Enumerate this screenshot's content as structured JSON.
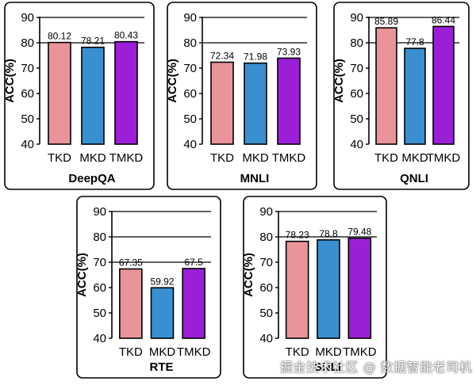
{
  "chart_data": [
    {
      "type": "bar",
      "title": "DeepQA",
      "ylabel": "ACC(%)",
      "ylim": [
        40,
        90
      ],
      "yticks": [
        40,
        50,
        60,
        70,
        80,
        90
      ],
      "gridlines": [
        80,
        90
      ],
      "categories": [
        "TKD",
        "MKD",
        "TMKD"
      ],
      "values": [
        80.12,
        78.21,
        80.43
      ],
      "labels": [
        "80.12",
        "78.21",
        "80.43"
      ]
    },
    {
      "type": "bar",
      "title": "MNLI",
      "ylabel": "ACC(%)",
      "ylim": [
        40,
        90
      ],
      "yticks": [
        40,
        50,
        60,
        70,
        80,
        90
      ],
      "gridlines": [
        80,
        90
      ],
      "categories": [
        "TKD",
        "MKD",
        "TMKD"
      ],
      "values": [
        72.34,
        71.98,
        73.93
      ],
      "labels": [
        "72.34",
        "71.98",
        "73.93"
      ]
    },
    {
      "type": "bar",
      "title": "QNLI",
      "ylabel": "ACC(%)",
      "ylim": [
        40,
        90
      ],
      "yticks": [
        40,
        50,
        60,
        70,
        80,
        90
      ],
      "gridlines": [
        80,
        90
      ],
      "categories": [
        "TKD",
        "MKD",
        "TMKD"
      ],
      "values": [
        85.89,
        77.8,
        86.44
      ],
      "labels": [
        "85.89",
        "77.8",
        "86.44"
      ]
    },
    {
      "type": "bar",
      "title": "RTE",
      "ylabel": "ACC(%)",
      "ylim": [
        40,
        90
      ],
      "yticks": [
        40,
        50,
        60,
        70,
        80,
        90
      ],
      "gridlines": [
        70,
        80,
        90
      ],
      "categories": [
        "TKD",
        "MKD",
        "TMKD"
      ],
      "values": [
        67.35,
        59.92,
        67.5
      ],
      "labels": [
        "67.35",
        "59.92",
        "67.5"
      ]
    },
    {
      "type": "bar",
      "title": "SNLI",
      "ylabel": "ACC(%)",
      "ylim": [
        40,
        90
      ],
      "yticks": [
        40,
        50,
        60,
        70,
        80,
        90
      ],
      "gridlines": [
        80,
        90
      ],
      "categories": [
        "TKD",
        "MKD",
        "TMKD"
      ],
      "values": [
        78.23,
        78.8,
        79.48
      ],
      "labels": [
        "78.23",
        "78.8",
        "79.48"
      ]
    }
  ],
  "colors": {
    "TKD": "#e8949a",
    "MKD": "#3a8fd0",
    "TMKD": "#9b1fd6",
    "frame": "#000000"
  },
  "watermark": "掘金技术社区 @ 数据智能老司机"
}
